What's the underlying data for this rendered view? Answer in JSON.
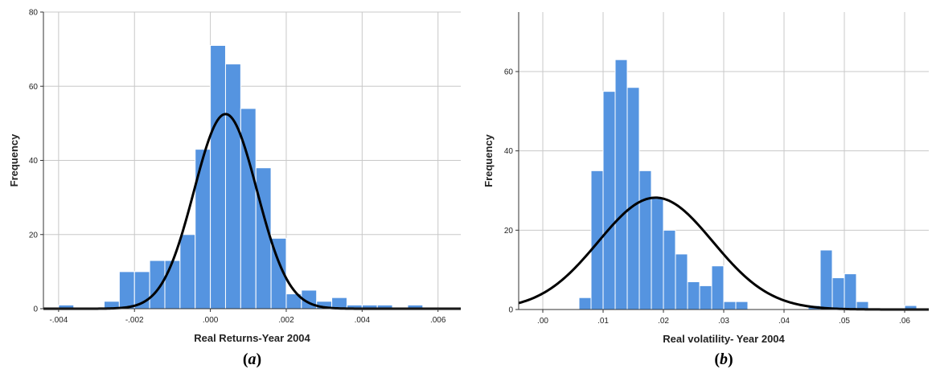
{
  "chart_data": [
    {
      "type": "bar",
      "subtype": "histogram",
      "caption_prefix": "(",
      "caption_letter": "a",
      "caption_suffix": ")",
      "xlabel": "Real Returns-Year 2004",
      "ylabel": "Frequency",
      "xlim": [
        -0.0044,
        0.0066
      ],
      "ylim": [
        0,
        80
      ],
      "xticks": [
        -0.004,
        -0.002,
        0.0,
        0.002,
        0.004,
        0.006
      ],
      "xtick_labels": [
        "-.004",
        "-.002",
        ".000",
        ".002",
        ".004",
        ".006"
      ],
      "yticks": [
        0,
        20,
        40,
        60,
        80
      ],
      "ytick_labels": [
        "0",
        "20",
        "40",
        "60",
        "80"
      ],
      "grid": true,
      "bar_color": "#5594e0",
      "bin_width": 0.0004,
      "bin_start": -0.0044,
      "values": [
        0,
        1,
        0,
        0,
        2,
        10,
        10,
        13,
        13,
        20,
        43,
        71,
        66,
        54,
        38,
        19,
        4,
        5,
        2,
        3,
        1,
        1,
        1,
        0,
        1,
        0,
        0
      ],
      "normal_curve": {
        "mean": 0.0004,
        "sd": 0.00083,
        "peak": 52.5,
        "color": "#000000"
      }
    },
    {
      "type": "bar",
      "subtype": "histogram",
      "caption_prefix": "(",
      "caption_letter": "b",
      "caption_suffix": ")",
      "xlabel": "Real volatility- Year 2004",
      "ylabel": "Frequency",
      "xlim": [
        -0.004,
        0.064
      ],
      "ylim": [
        0,
        75
      ],
      "xticks": [
        0.0,
        0.01,
        0.02,
        0.03,
        0.04,
        0.05,
        0.06
      ],
      "xtick_labels": [
        ".00",
        ".01",
        ".02",
        ".03",
        ".04",
        ".05",
        ".06"
      ],
      "yticks": [
        0,
        20,
        40,
        60
      ],
      "ytick_labels": [
        "0",
        "20",
        "40",
        "60"
      ],
      "grid": true,
      "bar_color": "#5594e0",
      "bin_width": 0.002,
      "bin_start": 0.006,
      "values": [
        3,
        35,
        55,
        63,
        56,
        35,
        28,
        20,
        14,
        7,
        6,
        11,
        2,
        2,
        0,
        0,
        0,
        0,
        0,
        1,
        15,
        8,
        9,
        2,
        0,
        0,
        0,
        1
      ],
      "normal_curve": {
        "mean": 0.0187,
        "sd": 0.0095,
        "peak": 28.2,
        "color": "#000000"
      }
    }
  ]
}
